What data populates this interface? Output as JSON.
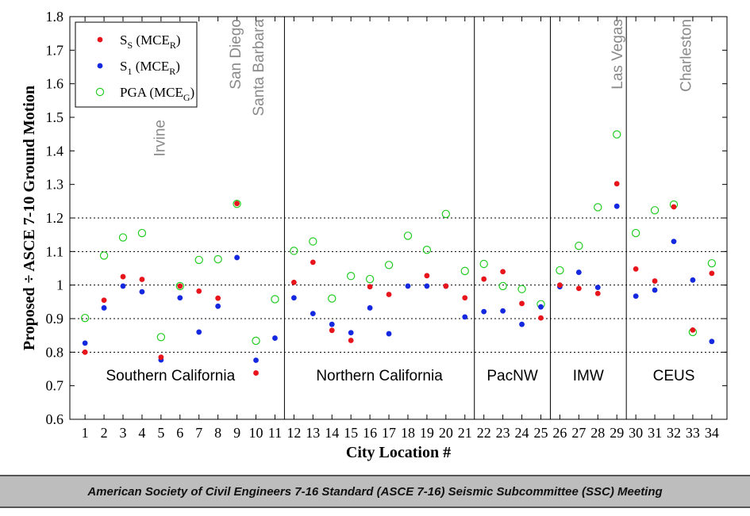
{
  "chart_data": {
    "type": "scatter",
    "xlabel": "City Location #",
    "ylabel": "Proposed ÷ ASCE 7-10 Ground Motion",
    "xlim": [
      0.2,
      34.8
    ],
    "ylim": [
      0.6,
      1.8
    ],
    "yticks": [
      "0.6",
      "0.7",
      "0.8",
      "0.9",
      "1",
      "1.1",
      "1.2",
      "1.3",
      "1.4",
      "1.5",
      "1.6",
      "1.7",
      "1.8"
    ],
    "ytick_values": [
      0.6,
      0.7,
      0.8,
      0.9,
      1.0,
      1.1,
      1.2,
      1.3,
      1.4,
      1.5,
      1.6,
      1.7,
      1.8
    ],
    "x": [
      1,
      2,
      3,
      4,
      5,
      6,
      7,
      8,
      9,
      10,
      11,
      12,
      13,
      14,
      15,
      16,
      17,
      18,
      19,
      20,
      21,
      22,
      23,
      24,
      25,
      26,
      27,
      28,
      29,
      30,
      31,
      32,
      33,
      34
    ],
    "xtick_labels": [
      "1",
      "2",
      "3",
      "4",
      "5",
      "6",
      "7",
      "8",
      "9",
      "10",
      "11",
      "12",
      "13",
      "14",
      "15",
      "16",
      "17",
      "18",
      "19",
      "20",
      "21",
      "22",
      "23",
      "24",
      "25",
      "26",
      "27",
      "28",
      "29",
      "30",
      "31",
      "32",
      "33",
      "34"
    ],
    "dotted_gridlines": [
      0.8,
      0.9,
      1.0,
      1.1,
      1.2
    ],
    "region_dividers": [
      11.5,
      21.5,
      25.5,
      29.5
    ],
    "legend_position": "top-left",
    "series": [
      {
        "name_main": "S",
        "name_sub": "S",
        "name_rest": " (MCE",
        "name_sub2": "R",
        "name_end": ")",
        "marker": "filled-dot",
        "color": "#e8141b",
        "values": [
          0.8,
          0.955,
          1.025,
          1.017,
          0.785,
          0.997,
          0.982,
          0.961,
          1.243,
          0.738,
          null,
          1.008,
          1.068,
          0.865,
          0.835,
          0.995,
          0.972,
          null,
          1.028,
          0.997,
          0.962,
          1.018,
          1.04,
          0.945,
          0.902,
          1.0,
          0.99,
          0.975,
          1.302,
          1.048,
          1.012,
          1.233,
          0.866,
          1.035
        ]
      },
      {
        "name_main": "S",
        "name_sub": "1",
        "name_rest": " (MCE",
        "name_sub2": "R",
        "name_end": ")",
        "marker": "filled-dot",
        "color": "#1428e0",
        "values": [
          0.827,
          0.932,
          0.997,
          0.98,
          0.777,
          0.962,
          0.86,
          0.937,
          1.082,
          0.776,
          0.842,
          0.962,
          0.915,
          0.883,
          0.858,
          0.932,
          0.855,
          0.997,
          0.997,
          0.997,
          0.905,
          0.921,
          0.923,
          0.883,
          0.935,
          0.995,
          1.038,
          0.993,
          1.235,
          0.967,
          0.985,
          1.13,
          1.015,
          0.832
        ]
      },
      {
        "name_main": "PGA",
        "name_sub": "",
        "name_rest": " (MCE",
        "name_sub2": "G",
        "name_end": ")",
        "marker": "open-circle",
        "color": "#22cc22",
        "values": [
          0.902,
          1.088,
          1.142,
          1.155,
          0.845,
          0.997,
          1.075,
          1.077,
          1.242,
          0.834,
          0.958,
          1.102,
          1.13,
          0.96,
          1.027,
          1.018,
          1.06,
          1.147,
          1.105,
          1.212,
          1.042,
          1.063,
          0.997,
          0.988,
          0.943,
          1.044,
          1.117,
          1.232,
          1.449,
          1.155,
          1.223,
          1.24,
          0.86,
          1.065
        ]
      }
    ],
    "regions": [
      {
        "label": "Southern California",
        "x": 5.5
      },
      {
        "label": "Northern California",
        "x": 16.5
      },
      {
        "label": "PacNW",
        "x": 23.5
      },
      {
        "label": "IMW",
        "x": 27.5
      },
      {
        "label": "CEUS",
        "x": 32.0
      }
    ],
    "city_annotations": [
      {
        "label": "Irvine",
        "x": 4.9,
        "y_top": 1.5
      },
      {
        "label": "San Diego",
        "x": 8.9,
        "y_top": 1.8
      },
      {
        "label": "Santa Barbara",
        "x": 10.1,
        "y_top": 1.8
      },
      {
        "label": "Las Vegas",
        "x": 29.0,
        "y_top": 1.8
      },
      {
        "label": "Charleston",
        "x": 32.6,
        "y_top": 1.8
      }
    ]
  },
  "footer": {
    "text": "American Society of Civil Engineers 7-16 Standard (ASCE 7-16) Seismic Subcommittee (SSC) Meeting"
  }
}
